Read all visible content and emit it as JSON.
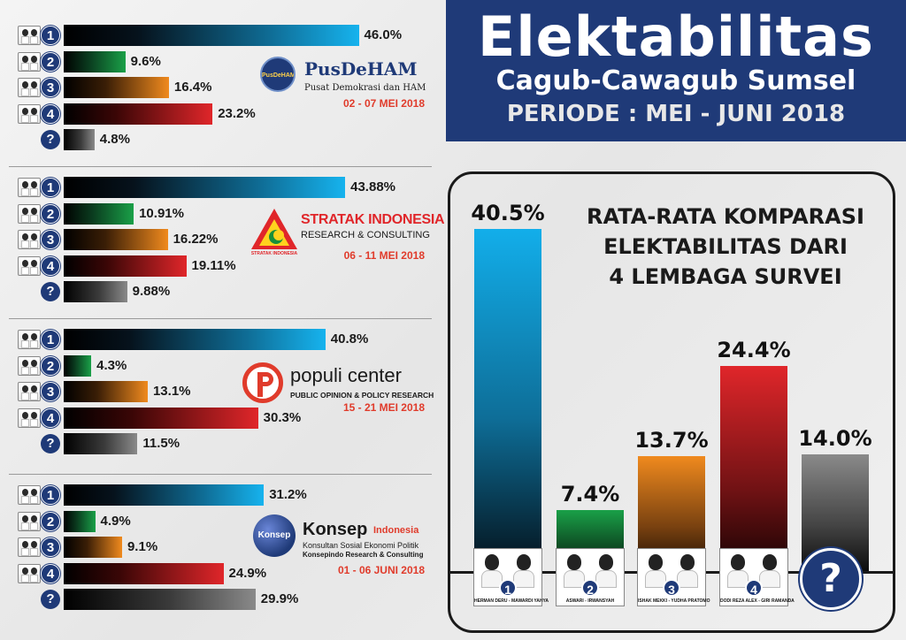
{
  "header": {
    "title": "Elektabilitas",
    "subtitle": "Cagub-Cawagub Sumsel",
    "period": "PERIODE : MEI - JUNI 2018"
  },
  "colors": {
    "navy": "#1f3a78",
    "candidate_1": "#16b3ee",
    "candidate_2": "#1aa048",
    "candidate_3": "#f08a1e",
    "candidate_4": "#e0262a",
    "undecided": "#8a8a8a",
    "date_red": "#e03b2b"
  },
  "icons": {
    "candidate_photo": "candidate-pair-photo-icon",
    "undecided": "question-mark-icon"
  },
  "surveys": [
    {
      "logo_name": "PusDeHAM",
      "logo_mark": "PusDeHAM",
      "logo_tagline": "Pusat Demokrasi dan HAM",
      "logo_tagline2": "",
      "date": "02 - 07 MEI 2018",
      "categories": [
        "1",
        "2",
        "3",
        "4",
        "?"
      ],
      "values": [
        46.0,
        9.6,
        16.4,
        23.2,
        4.8
      ],
      "value_labels": [
        "46.0%",
        "9.6%",
        "16.4%",
        "23.2%",
        "4.8%"
      ]
    },
    {
      "logo_name": "STRATAK INDONESIA",
      "logo_mark": "STRATAK INDONESIA",
      "logo_tagline": "RESEARCH & CONSULTING",
      "logo_tagline2": "",
      "date": "06 - 11 MEI 2018",
      "categories": [
        "1",
        "2",
        "3",
        "4",
        "?"
      ],
      "values": [
        43.88,
        10.91,
        16.22,
        19.11,
        9.88
      ],
      "value_labels": [
        "43.88%",
        "10.91%",
        "16.22%",
        "19.11%",
        "9.88%"
      ]
    },
    {
      "logo_name": "populi center",
      "logo_mark": "",
      "logo_tagline": "PUBLIC OPINION & POLICY RESEARCH",
      "logo_tagline2": "",
      "date": "15 - 21 MEI 2018",
      "categories": [
        "1",
        "2",
        "3",
        "4",
        "?"
      ],
      "values": [
        40.8,
        4.3,
        13.1,
        30.3,
        11.5
      ],
      "value_labels": [
        "40.8%",
        "4.3%",
        "13.1%",
        "30.3%",
        "11.5%"
      ]
    },
    {
      "logo_name": "Konsep",
      "logo_name_suffix": "Indonesia",
      "logo_mark": "Konsep",
      "logo_tagline": "Konsultan Sosial Ekonomi Politik",
      "logo_tagline2": "Konsepindo Research & Consulting",
      "date": "01 - 06 JUNI 2018",
      "categories": [
        "1",
        "2",
        "3",
        "4",
        "?"
      ],
      "values": [
        31.2,
        4.9,
        9.1,
        24.9,
        29.9
      ],
      "value_labels": [
        "31.2%",
        "4.9%",
        "9.1%",
        "24.9%",
        "29.9%"
      ]
    }
  ],
  "average": {
    "title_lines": [
      "RATA-RATA KOMPARASI",
      "ELEKTABILITAS DARI",
      "4 LEMBAGA SURVEI"
    ],
    "candidates": [
      {
        "number": "1",
        "caption": "HERMAN DERU - MAWARDI YAHYA"
      },
      {
        "number": "2",
        "caption": "ASWARI - IRWANSYAH"
      },
      {
        "number": "3",
        "caption": "ISHAK MEKKI - YUDHA PRATOMO"
      },
      {
        "number": "4",
        "caption": "DODI REZA ALEX - GIRI RAMANDA"
      }
    ],
    "undecided_symbol": "?"
  },
  "chart_data": [
    {
      "type": "bar",
      "orientation": "horizontal",
      "title": "",
      "source": "PusDeHAM",
      "categories": [
        "1",
        "2",
        "3",
        "4",
        "?"
      ],
      "values": [
        46.0,
        9.6,
        16.4,
        23.2,
        4.8
      ],
      "xlim": [
        0,
        55
      ],
      "grid": false
    },
    {
      "type": "bar",
      "orientation": "horizontal",
      "title": "",
      "source": "STRATAK INDONESIA",
      "categories": [
        "1",
        "2",
        "3",
        "4",
        "?"
      ],
      "values": [
        43.88,
        10.91,
        16.22,
        19.11,
        9.88
      ],
      "xlim": [
        0,
        55
      ],
      "grid": false
    },
    {
      "type": "bar",
      "orientation": "horizontal",
      "title": "",
      "source": "populi center",
      "categories": [
        "1",
        "2",
        "3",
        "4",
        "?"
      ],
      "values": [
        40.8,
        4.3,
        13.1,
        30.3,
        11.5
      ],
      "xlim": [
        0,
        55
      ],
      "grid": false
    },
    {
      "type": "bar",
      "orientation": "horizontal",
      "title": "",
      "source": "Konsep Indonesia",
      "categories": [
        "1",
        "2",
        "3",
        "4",
        "?"
      ],
      "values": [
        31.2,
        4.9,
        9.1,
        24.9,
        29.9
      ],
      "xlim": [
        0,
        55
      ],
      "grid": false
    },
    {
      "type": "bar",
      "orientation": "vertical",
      "title": "RATA-RATA KOMPARASI ELEKTABILITAS DARI 4 LEMBAGA SURVEI",
      "categories": [
        "1",
        "2",
        "3",
        "4",
        "?"
      ],
      "values": [
        40.5,
        7.4,
        13.7,
        24.4,
        14.0
      ],
      "value_labels": [
        "40.5%",
        "7.4%",
        "13.7%",
        "24.4%",
        "14.0%"
      ],
      "ylim": [
        0,
        45
      ],
      "grid": false
    }
  ]
}
